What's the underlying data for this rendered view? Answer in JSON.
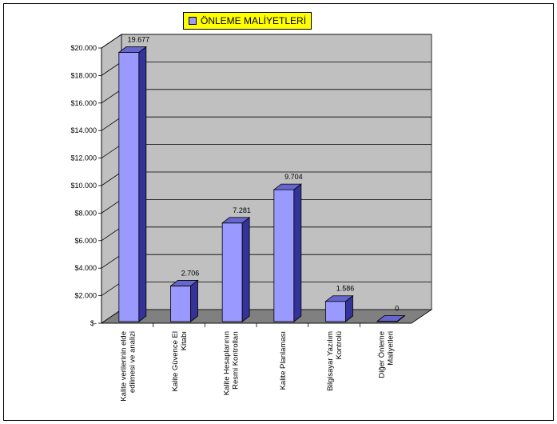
{
  "legend": {
    "label": "ÖNLEME MALİYETLERİ"
  },
  "colors": {
    "bar_front": "#9999ff",
    "bar_side": "#333399",
    "bar_top": "#6666cc",
    "wall": "#c0c0c0",
    "floor": "#808080",
    "legend_bg": "#ffff00"
  },
  "chart_data": {
    "type": "bar",
    "title": "",
    "xlabel": "",
    "ylabel": "",
    "ylim": [
      0,
      20000
    ],
    "y_ticks": [
      "$-",
      "$2.000",
      "$4.000",
      "$6.000",
      "$8.000",
      "$10.000",
      "$12.000",
      "$14.000",
      "$16.000",
      "$18.000",
      "$20.000"
    ],
    "categories": [
      [
        "Kalite verilerinin elde",
        "edilmesi ve analizi"
      ],
      [
        "Kalite Güvence El",
        "Kitabı"
      ],
      [
        "Kalite Hesaplarının",
        "Resmi Kontrolları"
      ],
      [
        "Kalite Planlaması"
      ],
      [
        "Bilgisayar Yazılım",
        "Kontrolü"
      ],
      [
        "Diğer Önleme",
        "Maliyetleri"
      ]
    ],
    "series": [
      {
        "name": "ÖNLEME MALİYETLERİ",
        "values": [
          19677,
          2706,
          7281,
          9704,
          1586,
          0
        ],
        "labels": [
          "19.677",
          "2.706",
          "7.281",
          "9.704",
          "1.586",
          "0"
        ]
      }
    ],
    "grid": true,
    "legend_position": "top-center"
  }
}
